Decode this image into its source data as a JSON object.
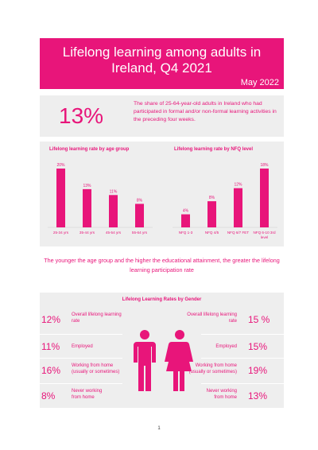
{
  "header": {
    "title_line1": "Lifelong learning among adults in",
    "title_line2": "Ireland, Q4 2021",
    "date": "May 2022"
  },
  "summary": {
    "value": "13%",
    "description": "The share of 25-64-year-old adults in Ireland who had participated in formal and/or non-formal learning activities in the preceding four weeks."
  },
  "chart_data": [
    {
      "type": "bar",
      "title": "Lifelong learning rate by age group",
      "categories": [
        "25-34 yrs",
        "35-44 yrs",
        "45-54 yrs",
        "55-64 yrs"
      ],
      "values": [
        20,
        13,
        11,
        8
      ],
      "data_labels": [
        "20%",
        "13%",
        "11%",
        "8%"
      ],
      "color": "#e8157a",
      "grid": false
    },
    {
      "type": "bar",
      "title": "Lifelong learning rate by NFQ level",
      "categories": [
        "NFQ 1-3",
        "NFQ 4/5",
        "NFQ 6/7 FET",
        "NFQ 6-10 3rd level"
      ],
      "category_lines": [
        [
          "NFQ 1-3"
        ],
        [
          "NFQ 4/5"
        ],
        [
          "NFQ 6/7 FET"
        ],
        [
          "NFQ 6-10 3rd",
          "level"
        ]
      ],
      "values": [
        4,
        8,
        12,
        18
      ],
      "data_labels": [
        "4%",
        "8%",
        "12%",
        "18%"
      ],
      "color": "#e8157a",
      "grid": false
    }
  ],
  "caption": "The younger the age group and the higher the educational attainment, the greater the lifelong learning participation rate",
  "gender": {
    "title": "Lifelong Learning Rates by Gender",
    "rows": [
      {
        "label": "Overall lifelong learning rate",
        "male": "12%",
        "female": "15 %"
      },
      {
        "label": "Employed",
        "male": "11%",
        "female": "15%"
      },
      {
        "label": "Working from home (usually or sometimes)",
        "male": "16%",
        "female": "19%"
      },
      {
        "label": "Never working from home",
        "male": "8%",
        "female": "13%"
      }
    ],
    "male_icon": "male-figure-icon",
    "female_icon": "female-figure-icon"
  },
  "page_number": "1",
  "colors": {
    "accent": "#e8157a",
    "panel": "#eeeeee"
  }
}
